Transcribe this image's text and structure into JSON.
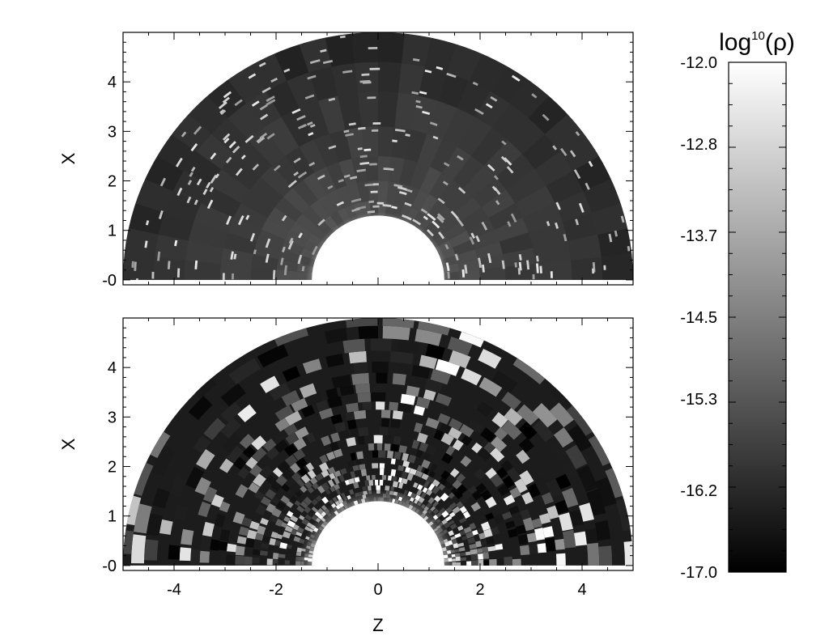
{
  "chart_data": [
    {
      "type": "heatmap",
      "panel": "top",
      "projection": "polar half-annulus (r, theta) shown in Z-X plane",
      "xlabel": "",
      "ylabel": "X",
      "xlim": [
        -5,
        5
      ],
      "ylim": [
        -0.1,
        5
      ],
      "r_range": [
        1.3,
        5
      ],
      "yticks": [
        "-0",
        "1",
        "2",
        "3",
        "4"
      ],
      "grid": false,
      "texture": "medium-gray annulus with sparse short bright arc segments; white core near r<1.3",
      "value_range": [
        -17.0,
        -12.0
      ]
    },
    {
      "type": "heatmap",
      "panel": "bottom",
      "projection": "polar half-annulus (r, theta) shown in Z-X plane",
      "xlabel": "Z",
      "ylabel": "X",
      "xlim": [
        -5,
        5
      ],
      "ylim": [
        -0.1,
        5
      ],
      "r_range": [
        1.3,
        5
      ],
      "xticks": [
        "-4",
        "-2",
        "0",
        "2",
        "4"
      ],
      "yticks": [
        "-0",
        "1",
        "2",
        "3",
        "4"
      ],
      "grid": false,
      "texture": "high-contrast black/white patchy blocks, denser near inner radius",
      "value_range": [
        -17.0,
        -12.0
      ]
    }
  ],
  "colorbar": {
    "title_base": "log",
    "title_sup": "10",
    "title_arg": "(ρ)",
    "ticks": [
      "-12.0",
      "-12.8",
      "-13.7",
      "-14.5",
      "-15.3",
      "-16.2",
      "-17.0"
    ],
    "range": [
      -17.0,
      -12.0
    ],
    "colormap": "grayscale, black (low) to white (high)"
  }
}
